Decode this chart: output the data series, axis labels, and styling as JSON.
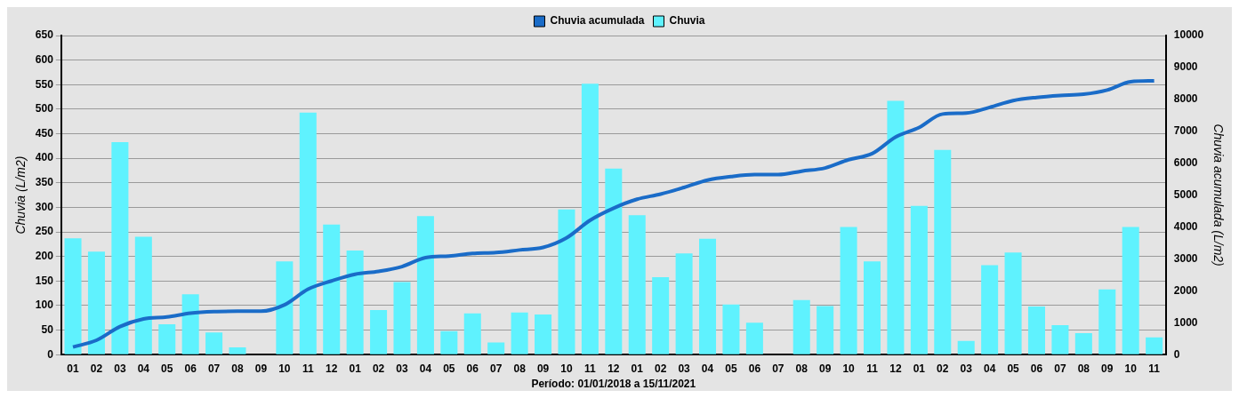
{
  "chart_data": {
    "type": "bar",
    "xlabel": "Período: 01/01/2018 a 15/11/2021",
    "ylabel": "Chuvia (L/m2)",
    "y2label": "Chuvia acumulada (L/m2)",
    "categories": [
      "01",
      "02",
      "03",
      "04",
      "05",
      "06",
      "07",
      "08",
      "09",
      "10",
      "11",
      "12",
      "01",
      "02",
      "03",
      "04",
      "05",
      "06",
      "07",
      "08",
      "09",
      "10",
      "11",
      "12",
      "01",
      "02",
      "03",
      "04",
      "05",
      "06",
      "07",
      "08",
      "09",
      "10",
      "11",
      "12",
      "01",
      "02",
      "03",
      "04",
      "05",
      "06",
      "07",
      "08",
      "09",
      "10",
      "11"
    ],
    "series": [
      {
        "name": "Chuvia acumulada",
        "type": "line",
        "axis": "y2",
        "color": "#1a6cc8",
        "marker": "none",
        "line_style": "solid",
        "values": [
          240,
          450,
          880,
          1120,
          1180,
          1300,
          1350,
          1360,
          1360,
          1560,
          2050,
          2310,
          2520,
          2610,
          2760,
          3040,
          3090,
          3170,
          3200,
          3280,
          3360,
          3660,
          4210,
          4590,
          4870,
          5030,
          5240,
          5470,
          5580,
          5640,
          5640,
          5750,
          5850,
          6110,
          6300,
          6820,
          7120,
          7540,
          7570,
          7750,
          7960,
          8060,
          8120,
          8160,
          8290,
          8550,
          8580
        ]
      },
      {
        "name": "Chuvia",
        "color": "#5ff2fe",
        "values": [
          237,
          210,
          433,
          240,
          62,
          123,
          45,
          15,
          0,
          190,
          493,
          265,
          212,
          91,
          148,
          282,
          48,
          84,
          25,
          86,
          82,
          296,
          552,
          379,
          284,
          158,
          206,
          236,
          102,
          65,
          0,
          111,
          99,
          260,
          190,
          517,
          303,
          417,
          28,
          182,
          208,
          98,
          60,
          44,
          133,
          260,
          35
        ]
      }
    ],
    "ylim": [
      0,
      650
    ],
    "yticks": [
      0,
      50,
      100,
      150,
      200,
      250,
      300,
      350,
      400,
      450,
      500,
      550,
      600,
      650
    ],
    "y2lim": [
      0,
      10000
    ],
    "y2ticks": [
      0,
      1000,
      2000,
      3000,
      4000,
      5000,
      6000,
      7000,
      8000,
      9000,
      10000
    ],
    "grid": "y",
    "legend": "top"
  }
}
